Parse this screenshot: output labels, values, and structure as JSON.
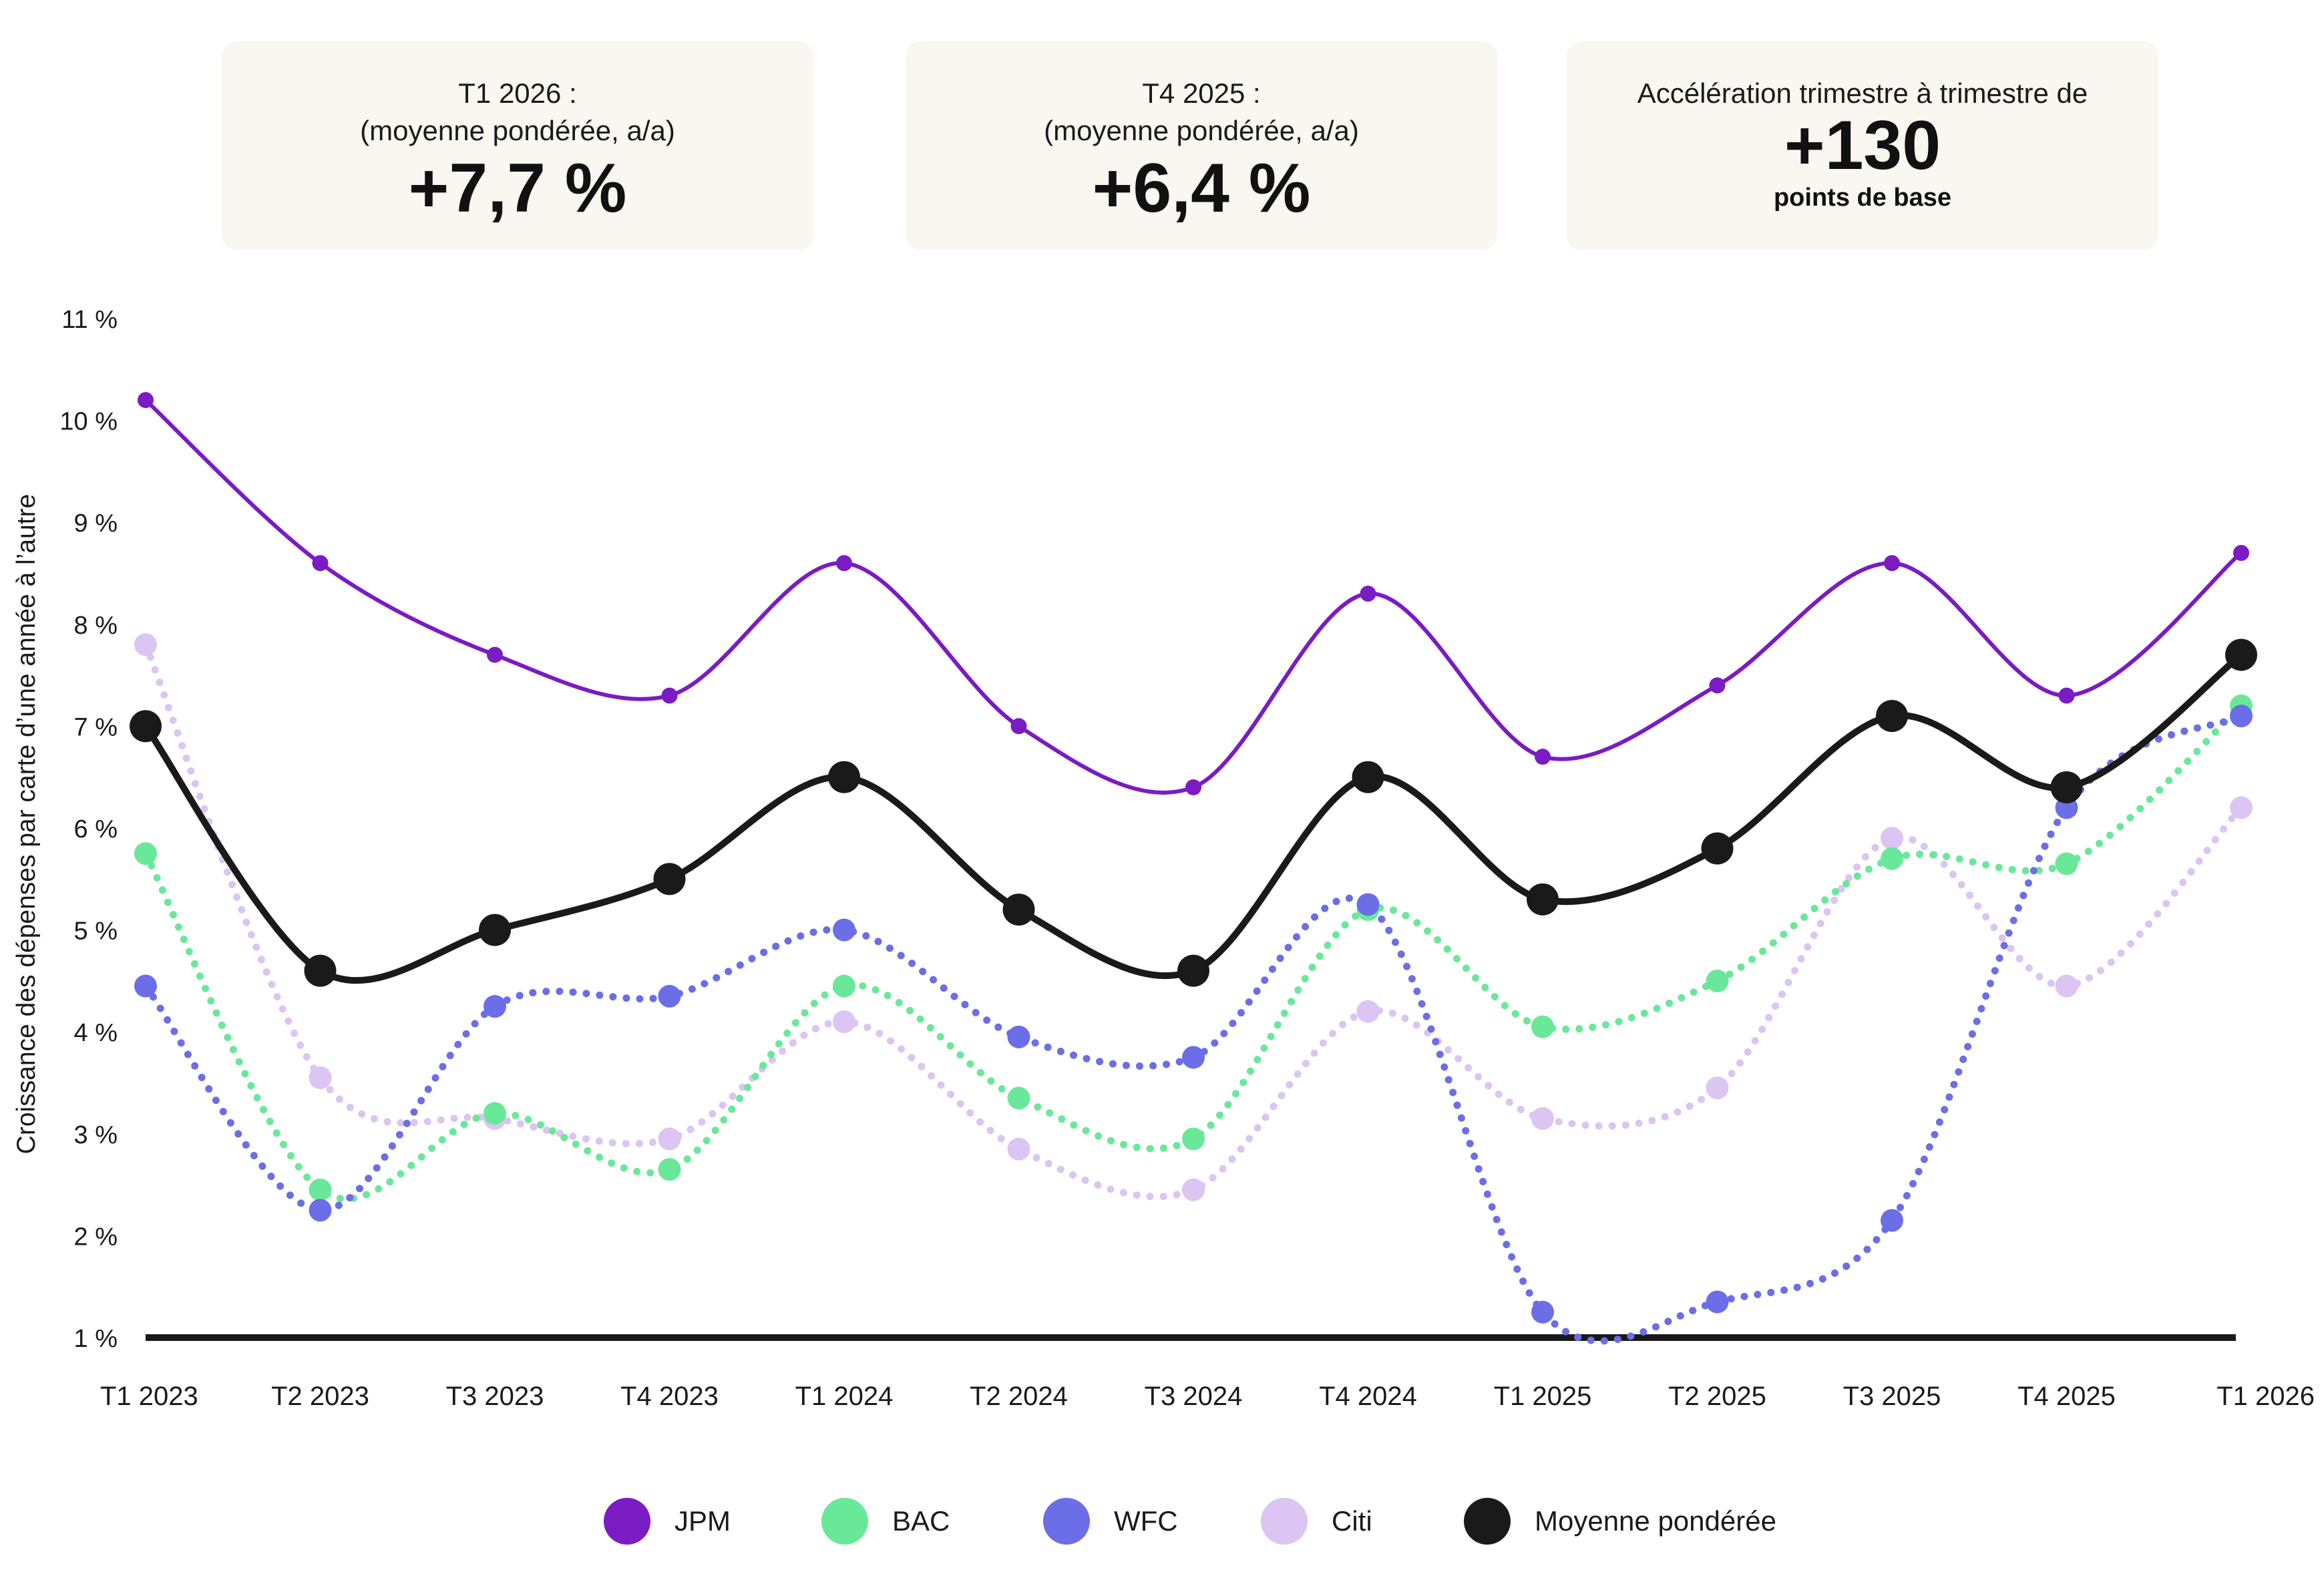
{
  "cards": [
    {
      "line1": "T1 2026 :",
      "line2": "(moyenne pondérée, a/a)",
      "value": "+7,7 %"
    },
    {
      "line1": "T4 2025 :",
      "line2": "(moyenne pondérée, a/a)",
      "value": "+6,4 %"
    },
    {
      "line1": "Accélération trimestre à trimestre de",
      "value": "+130",
      "sub": "points de base"
    }
  ],
  "chart_data": {
    "type": "line",
    "title": "",
    "xlabel": "",
    "ylabel": "Croissance des dépenses par carte d’une année à l’autre",
    "ylim": [
      1,
      11
    ],
    "yticks": [
      "1 %",
      "2 %",
      "3 %",
      "4 %",
      "5 %",
      "6 %",
      "7 %",
      "8 %",
      "9 %",
      "10 %",
      "11 %"
    ],
    "categories": [
      "T1 2023",
      "T2 2023",
      "T3 2023",
      "T4 2023",
      "T1 2024",
      "T2 2024",
      "T3 2024",
      "T4 2024",
      "T1 2025",
      "T2 2025",
      "T3 2025",
      "T4 2025",
      "T1 2026"
    ],
    "series": [
      {
        "name": "Citi",
        "color": "#dcc4f3",
        "style": "dotted",
        "values": [
          7.8,
          3.55,
          3.15,
          2.95,
          4.1,
          2.85,
          2.45,
          4.2,
          3.15,
          3.45,
          5.9,
          4.45,
          6.2
        ]
      },
      {
        "name": "BAC",
        "color": "#6ae89a",
        "style": "dotted",
        "values": [
          5.75,
          2.45,
          3.2,
          2.65,
          4.45,
          3.35,
          2.95,
          5.2,
          4.05,
          4.5,
          5.7,
          5.65,
          7.2
        ]
      },
      {
        "name": "WFC",
        "color": "#6b6ee6",
        "style": "dotted",
        "values": [
          4.45,
          2.25,
          4.25,
          4.35,
          5.0,
          3.95,
          3.75,
          5.25,
          1.25,
          1.35,
          2.15,
          6.2,
          7.1
        ]
      },
      {
        "name": "JPM",
        "color": "#7a1bc4",
        "style": "solid",
        "values": [
          10.2,
          8.6,
          7.7,
          7.3,
          8.6,
          7.0,
          6.4,
          8.3,
          6.7,
          7.4,
          8.6,
          7.3,
          8.7
        ]
      },
      {
        "name": "Moyenne pondérée",
        "color": "#1a1a1a",
        "style": "solid",
        "values": [
          7.0,
          4.6,
          5.0,
          5.5,
          6.5,
          5.2,
          4.6,
          6.5,
          5.3,
          5.8,
          7.1,
          6.4,
          7.7
        ]
      }
    ],
    "legend": [
      {
        "name": "JPM",
        "color": "#7a1bc4"
      },
      {
        "name": "BAC",
        "color": "#6ae89a"
      },
      {
        "name": "WFC",
        "color": "#6b6ee6"
      },
      {
        "name": "Citi",
        "color": "#dcc4f3"
      },
      {
        "name": "Moyenne pondérée",
        "color": "#1a1a1a"
      }
    ]
  }
}
